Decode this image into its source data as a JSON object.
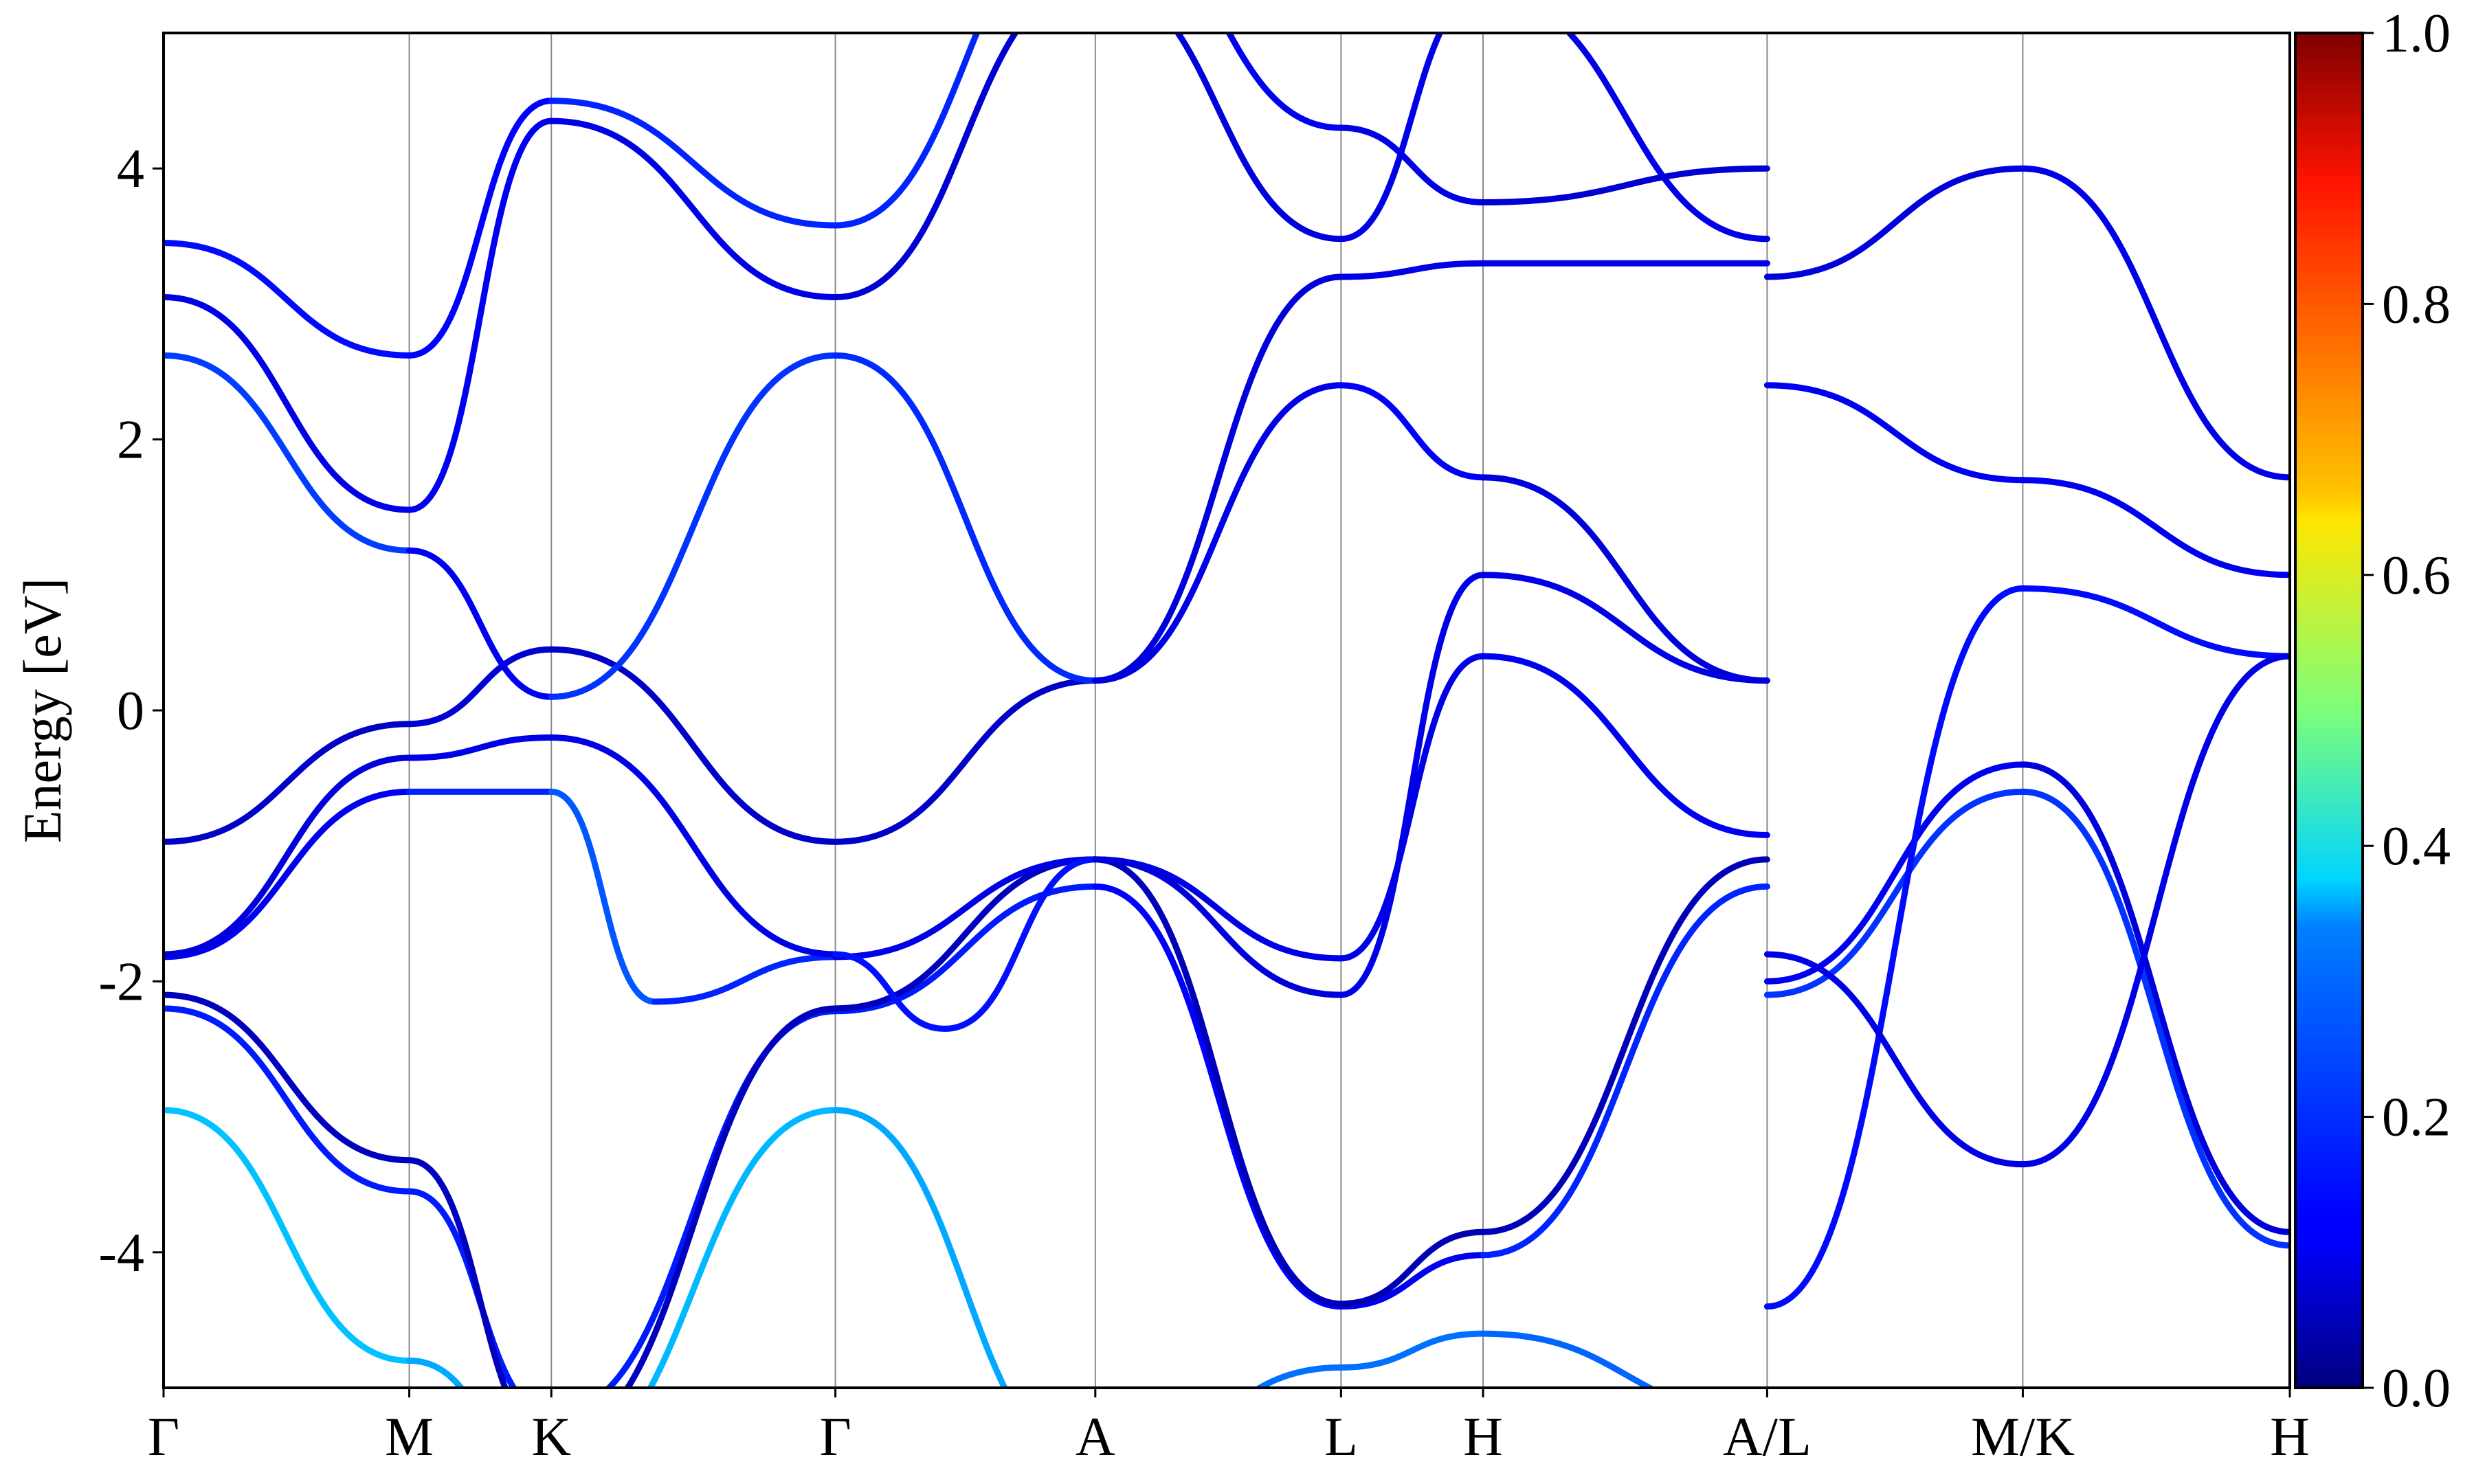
{
  "chart_data": {
    "type": "line",
    "title": "",
    "xlabel": "",
    "ylabel": "Energy [eV]",
    "ylim": [
      -5,
      5
    ],
    "yticks": [
      -4,
      -2,
      0,
      2,
      4
    ],
    "ytick_labels": [
      "-4",
      "-2",
      "0",
      "2",
      "4"
    ],
    "xlim": [
      0,
      7.485
    ],
    "kpoints": [
      {
        "label": "Γ",
        "x": 0
      },
      {
        "label": "M",
        "x": 0.865
      },
      {
        "label": "K",
        "x": 1.365
      },
      {
        "label": "Γ",
        "x": 2.365
      },
      {
        "label": "A",
        "x": 3.28
      },
      {
        "label": "L",
        "x": 4.145
      },
      {
        "label": "H",
        "x": 4.645
      },
      {
        "label": "A/L",
        "x": 5.645
      },
      {
        "label": "M/K",
        "x": 6.545
      },
      {
        "label": "H",
        "x": 7.485
      }
    ],
    "grid": false,
    "colorbar": {
      "min": 0.0,
      "max": 1.0,
      "ticks": [
        0.0,
        0.2,
        0.4,
        0.6,
        0.8,
        1.0
      ],
      "tick_labels": [
        "0.0",
        "0.2",
        "0.4",
        "0.6",
        "0.8",
        "1.0"
      ],
      "colormap": "jet"
    },
    "series": [
      {
        "x": [
          0,
          0.865,
          1.365,
          2.365,
          3.28,
          4.145,
          4.645,
          5.645
        ],
        "values": [
          -2.95,
          -4.8,
          -5.6,
          -2.95,
          -5.6,
          -4.85,
          -4.6,
          -5.2
        ],
        "c": [
          0.33,
          0.3,
          0.28,
          0.33,
          0.25,
          0.22,
          0.25,
          0.2
        ]
      },
      {
        "x": [
          0,
          0.865,
          1.365,
          2.365,
          3.28,
          4.145,
          4.645,
          5.645
        ],
        "values": [
          -2.2,
          -3.55,
          -5.2,
          -2.22,
          -1.3,
          -4.4,
          -4.02,
          -1.3
        ],
        "c": [
          0.15,
          0.15,
          0.15,
          0.15,
          0.15,
          0.1,
          0.12,
          0.2
        ]
      },
      {
        "x": [
          0,
          0.865,
          1.365,
          2.365,
          3.28,
          4.145,
          4.645,
          5.645
        ],
        "values": [
          -2.1,
          -3.32,
          -5.4,
          -2.2,
          -1.1,
          -4.38,
          -3.85,
          -1.1
        ],
        "c": [
          0.06,
          0.06,
          0.06,
          0.06,
          0.06,
          0.05,
          0.05,
          0.06
        ]
      },
      {
        "x": [
          0,
          0.865,
          1.365,
          1.73,
          2.365,
          3.28,
          4.145,
          4.645,
          5.645
        ],
        "values": [
          -1.82,
          -0.6,
          -0.6,
          -2.15,
          -1.82,
          -1.1,
          -1.83,
          0.4,
          -0.92
        ],
        "c": [
          0.1,
          0.12,
          0.2,
          0.22,
          0.1,
          0.1,
          0.1,
          0.1,
          0.12
        ]
      },
      {
        "x": [
          0,
          0.865,
          1.365,
          2.365,
          2.75,
          3.28,
          4.145,
          4.645,
          5.645
        ],
        "values": [
          -1.8,
          -0.35,
          -0.2,
          -1.8,
          -2.35,
          -1.1,
          -2.1,
          1.0,
          0.22
        ],
        "c": [
          0.08,
          0.1,
          0.1,
          0.1,
          0.18,
          0.1,
          0.08,
          0.12,
          0.08
        ]
      },
      {
        "x": [
          0,
          0.865,
          1.365,
          2.365,
          3.28,
          4.145,
          4.645,
          5.645
        ],
        "values": [
          -0.97,
          -0.1,
          0.45,
          -0.97,
          0.22,
          2.4,
          1.72,
          0.22
        ],
        "c": [
          0.06,
          0.08,
          0.08,
          0.06,
          0.08,
          0.12,
          0.12,
          0.06
        ]
      },
      {
        "x": [
          0,
          0.865,
          1.365,
          2.365,
          3.28,
          4.145,
          4.645,
          5.645
        ],
        "values": [
          2.62,
          1.18,
          0.1,
          2.62,
          0.22,
          3.2,
          3.3,
          3.3
        ],
        "c": [
          0.25,
          0.12,
          0.1,
          0.25,
          0.08,
          0.1,
          0.1,
          0.1
        ]
      },
      {
        "x": [
          0,
          0.865,
          1.365,
          2.365,
          3.28,
          4.145,
          4.645,
          5.645
        ],
        "values": [
          3.05,
          1.48,
          4.35,
          3.05,
          5.4,
          3.48,
          5.3,
          3.48
        ],
        "c": [
          0.1,
          0.1,
          0.12,
          0.08,
          0.08,
          0.1,
          0.1,
          0.1
        ]
      },
      {
        "x": [
          0,
          0.865,
          1.365,
          2.365,
          3.28,
          4.145,
          4.645,
          5.645
        ],
        "values": [
          3.45,
          2.62,
          4.5,
          3.58,
          6.0,
          4.3,
          3.75,
          4.0
        ],
        "c": [
          0.12,
          0.15,
          0.1,
          0.22,
          0.1,
          0.12,
          0.08,
          0.08
        ]
      },
      {
        "x": [
          5.645,
          6.545,
          7.485
        ],
        "values": [
          -2.0,
          -0.4,
          -3.85
        ],
        "c": [
          0.12,
          0.1,
          0.08
        ]
      },
      {
        "x": [
          5.645,
          6.545,
          7.485
        ],
        "values": [
          -2.1,
          -0.6,
          -3.95
        ],
        "c": [
          0.1,
          0.25,
          0.1
        ]
      },
      {
        "x": [
          5.645,
          6.545,
          7.485
        ],
        "values": [
          -4.4,
          0.9,
          0.4
        ],
        "c": [
          0.12,
          0.15,
          0.12
        ]
      },
      {
        "x": [
          5.645,
          6.545,
          7.485
        ],
        "values": [
          2.4,
          1.7,
          1.0
        ],
        "c": [
          0.1,
          0.12,
          0.1
        ]
      },
      {
        "x": [
          5.645,
          6.545,
          7.485
        ],
        "values": [
          3.2,
          4.0,
          1.72
        ],
        "c": [
          0.08,
          0.1,
          0.1
        ]
      },
      {
        "x": [
          5.645,
          6.545,
          7.485
        ],
        "values": [
          -1.8,
          -3.35,
          0.4
        ],
        "c": [
          0.1,
          0.1,
          0.1
        ]
      }
    ]
  }
}
